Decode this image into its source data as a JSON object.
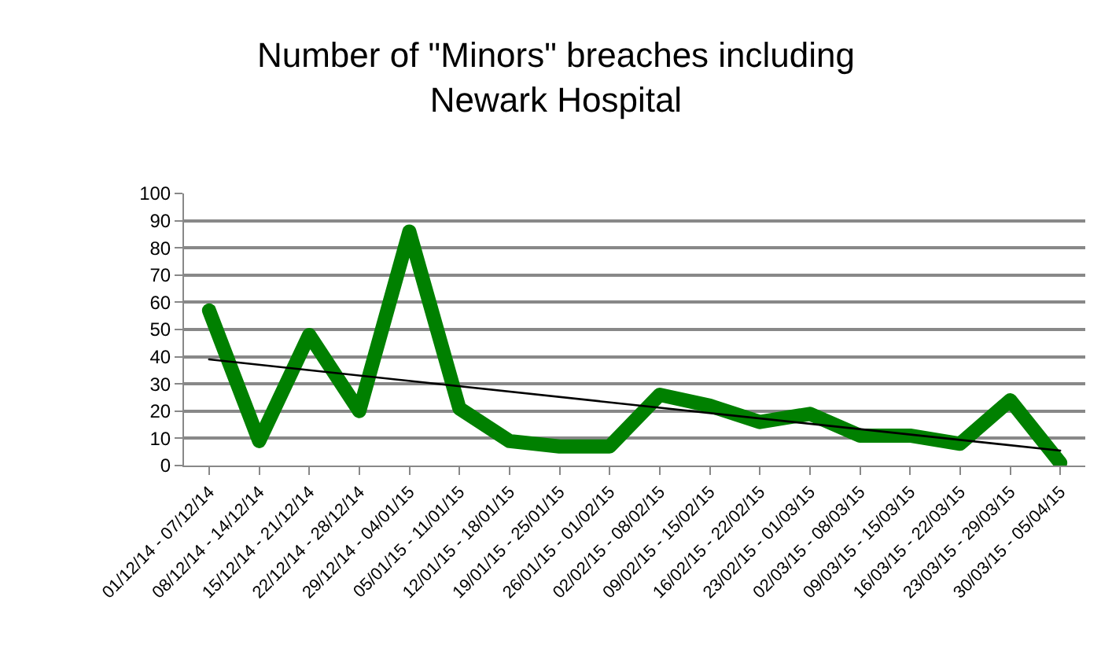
{
  "chart_data": {
    "type": "line",
    "title": "Number of \"Minors\" breaches including\nNewark Hospital",
    "categories": [
      "01/12/14 - 07/12/14",
      "08/12/14 - 14/12/14",
      "15/12/14 - 21/12/14",
      "22/12/14 - 28/12/14",
      "29/12/14 - 04/01/15",
      "05/01/15 - 11/01/15",
      "12/01/15 - 18/01/15",
      "19/01/15 - 25/01/15",
      "26/01/15 - 01/02/15",
      "02/02/15 - 08/02/15",
      "09/02/15 - 15/02/15",
      "16/02/15 - 22/02/15",
      "23/02/15 - 01/03/15",
      "02/03/15 - 08/03/15",
      "09/03/15 - 15/03/15",
      "16/03/15 - 22/03/15",
      "23/03/15 - 29/03/15",
      "30/03/15 - 05/04/15"
    ],
    "series": [
      {
        "color": "#008000",
        "values": [
          57,
          9,
          48,
          20,
          86,
          21,
          9,
          7,
          7,
          26,
          22,
          16,
          19,
          11,
          11,
          8,
          24,
          1
        ]
      },
      {
        "type": "line",
        "color": "#000000",
        "x": [
          "01/12/14 - 07/12/14",
          "30/03/15 - 05/04/15"
        ],
        "values": [
          39,
          5.5
        ]
      }
    ],
    "ylim": [
      0,
      100
    ],
    "yticks": [
      0,
      10,
      20,
      30,
      40,
      50,
      60,
      70,
      80,
      90,
      100
    ],
    "grid": "y",
    "marker": "none",
    "line_style": "solid"
  }
}
